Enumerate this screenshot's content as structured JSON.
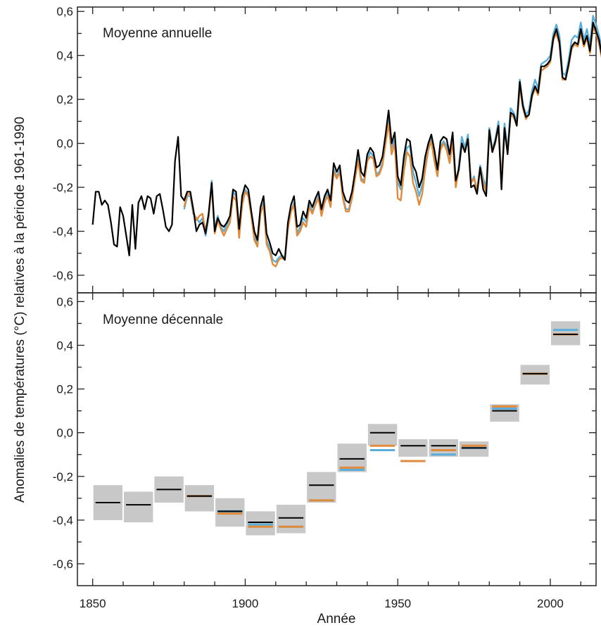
{
  "chart_data": [
    {
      "type": "line",
      "title": "Moyenne annuelle",
      "xlabel": "Année",
      "ylabel": "Anomalies de températures (°C) relatives à la période 1961-1990",
      "xlim": [
        1845,
        2015
      ],
      "ylim": [
        -0.68,
        0.62
      ],
      "yticks": [
        -0.6,
        -0.4,
        -0.2,
        0.0,
        0.2,
        0.4,
        0.6
      ],
      "ytick_labels": [
        "-0,6",
        "-0,4",
        "-0,2",
        "0,0",
        "0,2",
        "0,4",
        "0,6"
      ],
      "series": [
        {
          "color": "#000000",
          "start_year": 1850,
          "values": [
            -0.37,
            -0.22,
            -0.22,
            -0.28,
            -0.26,
            -0.28,
            -0.36,
            -0.46,
            -0.47,
            -0.29,
            -0.33,
            -0.42,
            -0.51,
            -0.28,
            -0.48,
            -0.27,
            -0.24,
            -0.3,
            -0.24,
            -0.25,
            -0.32,
            -0.24,
            -0.23,
            -0.3,
            -0.38,
            -0.4,
            -0.37,
            -0.08,
            0.03,
            -0.24,
            -0.26,
            -0.22,
            -0.22,
            -0.3,
            -0.4,
            -0.37,
            -0.36,
            -0.41,
            -0.32,
            -0.18,
            -0.4,
            -0.34,
            -0.37,
            -0.38,
            -0.36,
            -0.33,
            -0.21,
            -0.22,
            -0.39,
            -0.24,
            -0.19,
            -0.21,
            -0.31,
            -0.4,
            -0.44,
            -0.29,
            -0.24,
            -0.41,
            -0.45,
            -0.5,
            -0.51,
            -0.48,
            -0.51,
            -0.53,
            -0.36,
            -0.28,
            -0.24,
            -0.38,
            -0.37,
            -0.31,
            -0.34,
            -0.26,
            -0.29,
            -0.25,
            -0.22,
            -0.3,
            -0.24,
            -0.21,
            -0.26,
            -0.09,
            -0.13,
            -0.1,
            -0.22,
            -0.26,
            -0.27,
            -0.22,
            -0.13,
            -0.03,
            -0.13,
            -0.15,
            -0.05,
            -0.02,
            -0.04,
            -0.11,
            -0.1,
            -0.06,
            0.04,
            0.15,
            0.0,
            0.05,
            -0.15,
            -0.19,
            -0.06,
            0.02,
            0.01,
            -0.1,
            -0.13,
            -0.2,
            -0.16,
            -0.06,
            0.0,
            0.04,
            -0.03,
            -0.12,
            0.01,
            0.03,
            0.02,
            -0.05,
            0.05,
            -0.17,
            -0.12,
            0.0,
            -0.04,
            0.02,
            -0.2,
            -0.19,
            -0.23,
            -0.11,
            -0.21,
            -0.24,
            0.06,
            -0.04,
            0.01,
            0.08,
            -0.21,
            0.07,
            -0.05,
            0.14,
            0.13,
            0.08,
            0.28,
            0.17,
            0.12,
            0.13,
            0.22,
            0.26,
            0.23,
            0.35,
            0.35,
            0.36,
            0.38,
            0.48,
            0.52,
            0.46,
            0.3,
            0.29,
            0.36,
            0.44,
            0.46,
            0.45,
            0.52,
            0.45,
            0.49,
            0.42,
            0.55,
            0.51,
            0.47,
            0.39,
            0.49,
            0.46
          ]
        },
        {
          "color": "#5aaed9",
          "start_year": 1880,
          "values": [
            -0.3,
            -0.24,
            -0.24,
            -0.32,
            -0.34,
            -0.36,
            -0.34,
            -0.42,
            -0.34,
            -0.17,
            -0.39,
            -0.33,
            -0.38,
            -0.4,
            -0.37,
            -0.34,
            -0.22,
            -0.24,
            -0.41,
            -0.26,
            -0.21,
            -0.23,
            -0.32,
            -0.42,
            -0.46,
            -0.31,
            -0.27,
            -0.44,
            -0.48,
            -0.53,
            -0.54,
            -0.52,
            -0.51,
            -0.52,
            -0.38,
            -0.31,
            -0.27,
            -0.41,
            -0.38,
            -0.34,
            -0.36,
            -0.28,
            -0.31,
            -0.27,
            -0.24,
            -0.32,
            -0.26,
            -0.22,
            -0.28,
            -0.12,
            -0.15,
            -0.12,
            -0.24,
            -0.3,
            -0.3,
            -0.24,
            -0.15,
            -0.07,
            -0.16,
            -0.17,
            -0.07,
            -0.04,
            -0.06,
            -0.14,
            -0.13,
            -0.09,
            0.02,
            0.11,
            -0.02,
            0.02,
            -0.18,
            -0.21,
            -0.09,
            -0.02,
            -0.01,
            -0.13,
            -0.18,
            -0.24,
            -0.19,
            -0.08,
            -0.02,
            0.02,
            -0.06,
            -0.14,
            -0.02,
            0.01,
            -0.01,
            -0.08,
            0.02,
            -0.2,
            -0.1,
            0.03,
            -0.02,
            0.04,
            -0.18,
            -0.15,
            -0.22,
            -0.1,
            -0.16,
            -0.2,
            0.07,
            -0.03,
            0.02,
            0.1,
            -0.18,
            0.09,
            -0.03,
            0.16,
            0.14,
            0.1,
            0.29,
            0.18,
            0.13,
            0.15,
            0.24,
            0.29,
            0.25,
            0.36,
            0.37,
            0.38,
            0.4,
            0.5,
            0.54,
            0.49,
            0.32,
            0.31,
            0.38,
            0.47,
            0.49,
            0.48,
            0.55,
            0.47,
            0.52,
            0.45,
            0.58,
            0.54,
            0.49,
            0.42,
            0.53,
            0.47
          ]
        },
        {
          "color": "#e08a3c",
          "start_year": 1880,
          "values": [
            -0.29,
            -0.23,
            -0.23,
            -0.31,
            -0.35,
            -0.33,
            -0.32,
            -0.4,
            -0.33,
            -0.19,
            -0.41,
            -0.35,
            -0.39,
            -0.42,
            -0.39,
            -0.36,
            -0.24,
            -0.26,
            -0.43,
            -0.28,
            -0.22,
            -0.24,
            -0.33,
            -0.44,
            -0.47,
            -0.32,
            -0.28,
            -0.46,
            -0.49,
            -0.55,
            -0.56,
            -0.53,
            -0.52,
            -0.53,
            -0.39,
            -0.31,
            -0.28,
            -0.42,
            -0.4,
            -0.36,
            -0.38,
            -0.29,
            -0.32,
            -0.28,
            -0.25,
            -0.33,
            -0.27,
            -0.24,
            -0.29,
            -0.13,
            -0.16,
            -0.13,
            -0.25,
            -0.31,
            -0.31,
            -0.25,
            -0.16,
            -0.08,
            -0.17,
            -0.18,
            -0.08,
            -0.06,
            -0.07,
            -0.15,
            -0.14,
            -0.1,
            0.0,
            0.09,
            -0.05,
            0.0,
            -0.25,
            -0.26,
            -0.13,
            -0.04,
            -0.06,
            -0.18,
            -0.22,
            -0.28,
            -0.23,
            -0.12,
            -0.03,
            0.01,
            -0.08,
            -0.15,
            -0.03,
            0.0,
            -0.03,
            -0.09,
            0.01,
            -0.2,
            -0.12,
            0.0,
            -0.04,
            0.02,
            -0.18,
            -0.16,
            -0.21,
            -0.11,
            -0.18,
            -0.22,
            0.05,
            -0.04,
            0.0,
            0.08,
            -0.18,
            0.06,
            -0.04,
            0.13,
            0.12,
            0.08,
            0.26,
            0.16,
            0.11,
            0.13,
            0.21,
            0.25,
            0.22,
            0.33,
            0.34,
            0.35,
            0.37,
            0.47,
            0.5,
            0.45,
            0.29,
            0.29,
            0.35,
            0.43,
            0.45,
            0.44,
            0.5,
            0.44,
            0.48,
            0.41,
            0.53,
            0.5,
            0.45,
            0.38,
            0.45,
            0.43
          ]
        }
      ]
    },
    {
      "type": "bar",
      "title": "Moyenne décennale",
      "xlabel": "Année",
      "ylabel": "Anomalies de températures (°C) relatives à la période 1961-1990",
      "xlim": [
        1845,
        2015
      ],
      "ylim": [
        -0.7,
        0.64
      ],
      "x": [
        1850,
        1860,
        1870,
        1880,
        1890,
        1900,
        1910,
        1920,
        1930,
        1940,
        1950,
        1960,
        1970,
        1980,
        1990,
        2000
      ],
      "xticks": [
        1850,
        1900,
        1950,
        2000
      ],
      "xtick_labels": [
        "1850",
        "1900",
        "1950",
        "2000"
      ],
      "yticks": [
        -0.6,
        -0.4,
        -0.2,
        0.0,
        0.2,
        0.4,
        0.6
      ],
      "ytick_labels": [
        "-0,6",
        "-0,4",
        "-0,2",
        "0,0",
        "0,2",
        "0,4",
        "0,6"
      ],
      "uncertainty_color": "#c8c8c8",
      "uncertainty": [
        [
          -0.4,
          -0.24
        ],
        [
          -0.41,
          -0.27
        ],
        [
          -0.32,
          -0.2
        ],
        [
          -0.36,
          -0.24
        ],
        [
          -0.43,
          -0.3
        ],
        [
          -0.47,
          -0.36
        ],
        [
          -0.46,
          -0.33
        ],
        [
          -0.32,
          -0.18
        ],
        [
          -0.18,
          -0.05
        ],
        [
          -0.06,
          0.04
        ],
        [
          -0.11,
          -0.03
        ],
        [
          -0.11,
          -0.03
        ],
        [
          -0.11,
          -0.04
        ],
        [
          0.05,
          0.13
        ],
        [
          0.22,
          0.31
        ],
        [
          0.4,
          0.51
        ]
      ],
      "series": [
        {
          "color": "#000000",
          "values": [
            -0.32,
            -0.33,
            -0.26,
            -0.29,
            -0.36,
            -0.41,
            -0.39,
            -0.24,
            -0.12,
            0.0,
            -0.06,
            -0.06,
            -0.07,
            0.1,
            0.27,
            0.45
          ]
        },
        {
          "color": "#5aaed9",
          "values": [
            null,
            null,
            null,
            -0.29,
            -0.36,
            -0.42,
            -0.43,
            -0.31,
            -0.17,
            -0.08,
            -0.13,
            -0.1,
            -0.07,
            0.11,
            0.27,
            0.47
          ]
        },
        {
          "color": "#e08a3c",
          "values": [
            null,
            null,
            null,
            -0.29,
            -0.37,
            -0.43,
            -0.43,
            -0.31,
            -0.16,
            -0.06,
            -0.13,
            -0.08,
            -0.06,
            0.12,
            0.27,
            0.45
          ]
        }
      ]
    }
  ]
}
